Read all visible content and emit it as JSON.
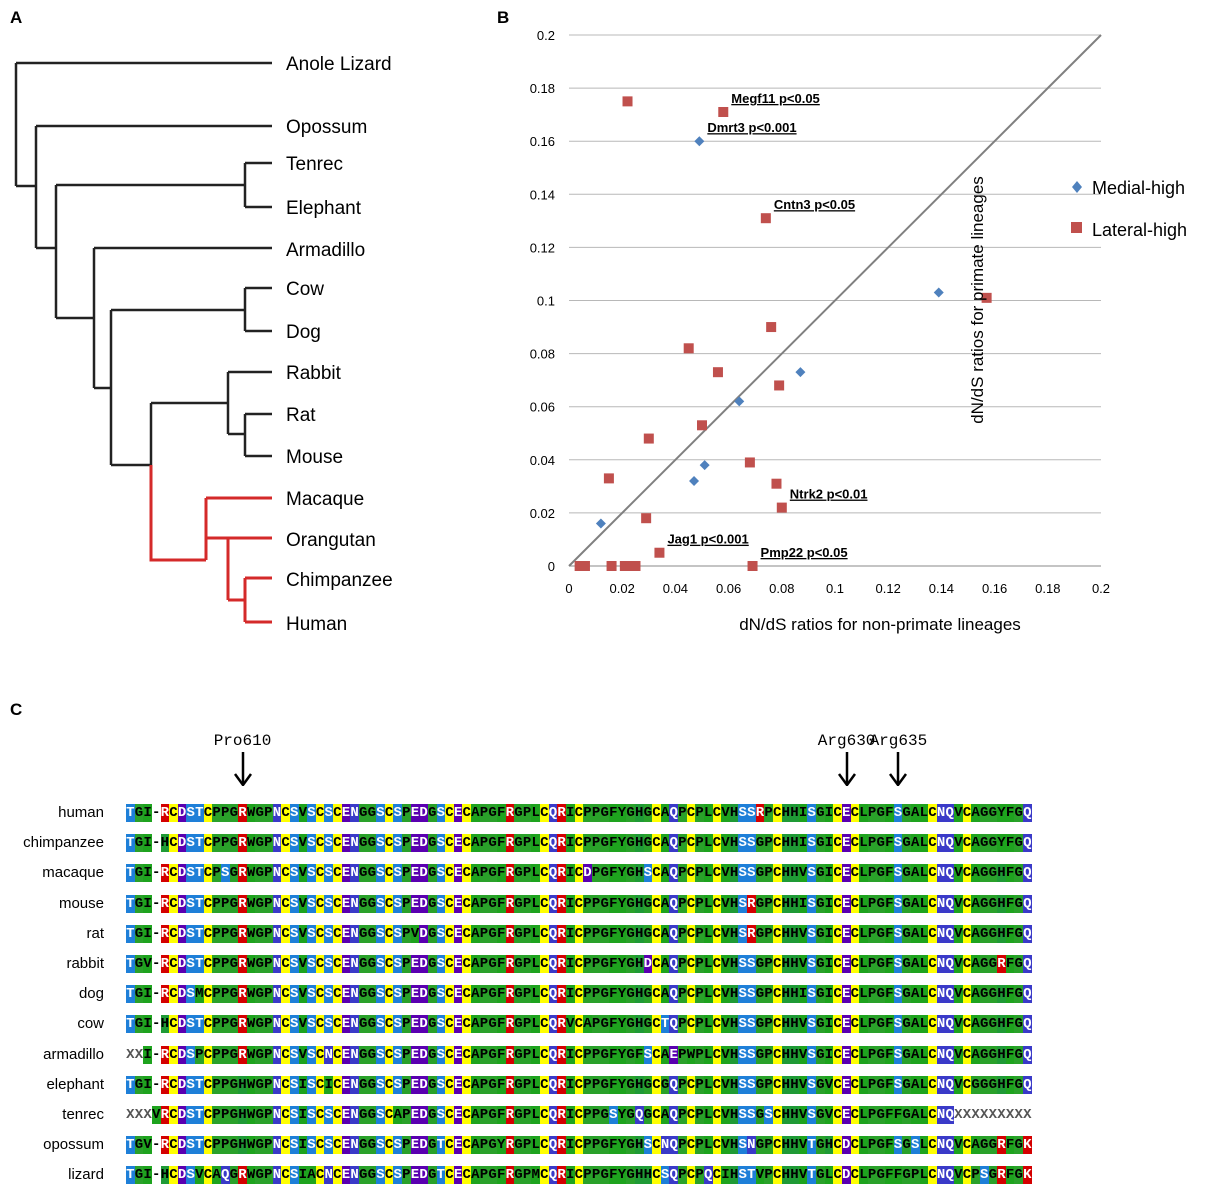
{
  "panels": {
    "a": "A",
    "b": "B",
    "c": "C"
  },
  "tree": {
    "species": [
      "Anole Lizard",
      "Opossum",
      "Tenrec",
      "Elephant",
      "Armadillo",
      "Cow",
      "Dog",
      "Rabbit",
      "Rat",
      "Mouse",
      "Macaque",
      "Orangutan",
      "Chimpanzee",
      "Human"
    ],
    "primate_color": "#d42a2a",
    "other_color": "#222222"
  },
  "chart_data": {
    "type": "scatter",
    "xlabel": "dN/dS ratios for non-primate lineages",
    "ylabel": "dN/dS ratios for primate lineages",
    "xlim": [
      0,
      0.2
    ],
    "ylim": [
      0,
      0.2
    ],
    "x_ticks": [
      "0",
      "0.02",
      "0.04",
      "0.06",
      "0.08",
      "0.1",
      "0.12",
      "0.14",
      "0.16",
      "0.18",
      "0.2"
    ],
    "y_ticks": [
      "0",
      "0.02",
      "0.04",
      "0.06",
      "0.08",
      "0.1",
      "0.12",
      "0.14",
      "0.16",
      "0.18",
      "0.2"
    ],
    "grid": "horizontal",
    "diagonal": {
      "from": [
        0,
        0
      ],
      "to": [
        0.2,
        0.2
      ],
      "color": "#808080"
    },
    "legend_position": "right",
    "series": [
      {
        "name": "Medial-high",
        "marker": "diamond",
        "color": "#4f81bd",
        "points": [
          [
            0.049,
            0.16
          ],
          [
            0.139,
            0.103
          ],
          [
            0.087,
            0.073
          ],
          [
            0.064,
            0.062
          ],
          [
            0.051,
            0.038
          ],
          [
            0.047,
            0.032
          ],
          [
            0.012,
            0.016
          ]
        ]
      },
      {
        "name": "Lateral-high",
        "marker": "square",
        "color": "#c0504d",
        "points": [
          [
            0.022,
            0.175
          ],
          [
            0.058,
            0.171
          ],
          [
            0.074,
            0.131
          ],
          [
            0.157,
            0.101
          ],
          [
            0.076,
            0.09
          ],
          [
            0.045,
            0.082
          ],
          [
            0.056,
            0.073
          ],
          [
            0.079,
            0.068
          ],
          [
            0.05,
            0.053
          ],
          [
            0.03,
            0.048
          ],
          [
            0.068,
            0.039
          ],
          [
            0.015,
            0.033
          ],
          [
            0.078,
            0.031
          ],
          [
            0.08,
            0.022
          ],
          [
            0.029,
            0.018
          ],
          [
            0.034,
            0.005
          ],
          [
            0.069,
            0.0
          ],
          [
            0.004,
            0.0
          ],
          [
            0.006,
            0.0
          ],
          [
            0.016,
            0.0
          ],
          [
            0.021,
            0.0
          ],
          [
            0.023,
            0.0
          ],
          [
            0.025,
            0.0
          ]
        ]
      }
    ],
    "annotations": [
      {
        "text": "Megf11 p<0.05",
        "point": [
          0.058,
          0.171
        ]
      },
      {
        "text": "Dmrt3 p<0.001",
        "point": [
          0.049,
          0.16
        ]
      },
      {
        "text": "Cntn3 p<0.05",
        "point": [
          0.074,
          0.131
        ]
      },
      {
        "text": "Ntrk2 p<0.01",
        "point": [
          0.08,
          0.022
        ]
      },
      {
        "text": "Jag1 p<0.001",
        "point": [
          0.034,
          0.005
        ]
      },
      {
        "text": "Pmp22 p<0.05",
        "point": [
          0.069,
          0.0
        ]
      }
    ]
  },
  "alignment": {
    "markers": [
      {
        "label": "Pro610",
        "column": 13
      },
      {
        "label": "Arg630",
        "column": 83
      },
      {
        "label": "Arg635",
        "column": 89
      }
    ],
    "rows": [
      {
        "species": "human",
        "seq": "TGI-RCDSTCPPGRWGPNCSVSCSCENGGSCSPEDGSCECAPGFRGPLCQRICPPGFYGHGCAQPCPLCVHSSRPCHHISGICECLPGFSGALCNQVCAGGYFGQ"
      },
      {
        "species": "chimpanzee",
        "seq": "TGI-HCDSTCPPGRWGPNCSVSCSCENGGSCSPEDGSCECAPGFRGPLCQRICPPGFYGHGCAQPCPLCVHSSGPCHHISGICECLPGFSGALCNQVCAGGYFGQ"
      },
      {
        "species": "macaque",
        "seq": "TGI-RCDSTCPSGRWGPNCSVSCSCENGGSCSPEDGSCECAPGFRGPLCQRICDPGFYGHSCAQPCPLCVHSSGPCHHVSGICECLPGFSGALCNQVCAGGHFGQ"
      },
      {
        "species": "mouse",
        "seq": "TGI-RCDSTCPPGRWGPNCSVSCSCENGGSCSPEDGSCECAPGFRGPLCQRICPPGFYGHGCAQPCPLCVHSRGPCHHISGICECLPGFSGALCNQVCAGGHFGQ"
      },
      {
        "species": "rat",
        "seq": "TGI-RCDSTCPPGRWGPNCSVSCSCENGGSCSPVDGSCECAPGFRGPLCQRICPPGFYGHGCAQPCPLCVHSRGPCHHVSGICECLPGFSGALCNQVCAGGHFGQ"
      },
      {
        "species": "rabbit",
        "seq": "TGV-RCDSTCPPGRWGPNCSVSCSCENGGSCSPEDGSCECAPGFRGPLCQRICPPGFYGHDCAQPCPLCVHSSGPCHHVSGICECLPGFSGALCNQVCAGGRFGQ"
      },
      {
        "species": "dog",
        "seq": "TGI-RCDSMCPPGRWGPNCSVSCSCENGGSCSPEDGSCECAPGFRGPLCQRICPPGFYGHGCAQPCPLCVHSSGPCHHISGICECLPGFSGALCNQVCAGGHFGQ"
      },
      {
        "species": "cow",
        "seq": "TGI-HCDSTCPPGRWGPNCSVSCSCENGGSCSPEDGSCECAPGFRGPLCQRVCAPGFYGHGCTQPCPLCVHSSGPCHHVSGICECLPGFSGALCNQVCAGGHFGQ"
      },
      {
        "species": "armadillo",
        "seq": "XXI-RCDSPCPPGRWGPNCSVSCNCENGGSCSPEDGSCECAPGFRGPLCQRICPPGFYGFSCAEPWPLCVHSSGPCHHVSGICECLPGFSGALCNQVCAGGHFGQ"
      },
      {
        "species": "elephant",
        "seq": "TGI-RCDSTCPPGHWGPNCSISCICENGGSCSPEDGSCECAPGFRGPLCQRICPPGFYGHGCGQPCPLCVHSSGPCHHVSGVCECLPGFSGALCNQVCGGGHFGQ"
      },
      {
        "species": "tenrec",
        "seq": "XXXVRCDSTCPPGHWGPNCSISCSCENGGSCAPEDGSCECAPGFRGPLCQRICPPGSYGQGCAQPCPLCVHSSGSCHHVSGVCECLPGFFGALCNQXXXXXXXXX"
      },
      {
        "species": "opossum",
        "seq": "TGV-RCDSTCPPGHWGPNCSISCSCENGGSCSPEDGTCECAPGYRGPLCQRICPPGFYGHSCNQPCPLCVHSNGPCHHVTGHCDCLPGFSGSLCNQVCAGGRFGK"
      },
      {
        "species": "lizard",
        "seq": "TGI-HCDSVCAQGRWGPNCSIACNCENGGSCSPEDGTCECAPGFRGPMCQRICPPGFYGHHCSQPCPQCIHSTVPCHHVTGLCDCLPGFFGPLCNQVCPSGRFGK"
      }
    ]
  }
}
